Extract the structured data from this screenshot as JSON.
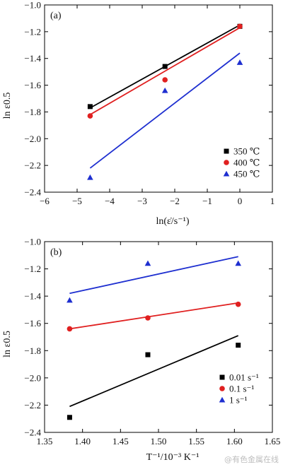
{
  "chart_data": [
    {
      "type": "scatter",
      "panel_label": "(a)",
      "xlabel": "ln(ε̇/s⁻¹)",
      "ylabel": "ln ε0.5",
      "xlim": [
        -6,
        1
      ],
      "ylim": [
        -2.4,
        -1.0
      ],
      "xticks": [
        -6,
        -5,
        -4,
        -3,
        -2,
        -1,
        0,
        1
      ],
      "xtick_labels": [
        "−6",
        "−5",
        "−4",
        "−3",
        "−2",
        "−1",
        "0",
        "1"
      ],
      "yticks": [
        -2.4,
        -2.2,
        -2.0,
        -1.8,
        -1.6,
        -1.4,
        -1.2,
        -1.0
      ],
      "ytick_labels": [
        "−2.4",
        "−2.2",
        "−2.0",
        "−1.8",
        "−1.6",
        "−1.4",
        "−1.2",
        "−1.0"
      ],
      "grid": false,
      "legend_position": "bottom-right",
      "series": [
        {
          "name": "350 ℃",
          "marker": "square",
          "color": "#000000",
          "x": [
            -4.6,
            -2.3,
            0.0
          ],
          "y": [
            -1.76,
            -1.46,
            -1.16
          ],
          "fit": {
            "x": [
              -4.6,
              0.0
            ],
            "y": [
              -1.77,
              -1.15
            ]
          }
        },
        {
          "name": "400 ℃",
          "marker": "circle",
          "color": "#e02020",
          "x": [
            -4.6,
            -2.3,
            0.0
          ],
          "y": [
            -1.83,
            -1.56,
            -1.16
          ],
          "fit": {
            "x": [
              -4.6,
              0.0
            ],
            "y": [
              -1.82,
              -1.17
            ]
          }
        },
        {
          "name": "450 ℃",
          "marker": "triangle",
          "color": "#1e2fd0",
          "x": [
            -4.6,
            -2.3,
            0.0
          ],
          "y": [
            -2.29,
            -1.64,
            -1.43
          ],
          "fit": {
            "x": [
              -4.6,
              0.0
            ],
            "y": [
              -2.22,
              -1.36
            ]
          }
        }
      ]
    },
    {
      "type": "scatter",
      "panel_label": "(b)",
      "xlabel": "T⁻¹/10⁻³ K⁻¹",
      "ylabel": "ln ε0.5",
      "xlim": [
        1.35,
        1.65
      ],
      "ylim": [
        -2.4,
        -1.0
      ],
      "xticks": [
        1.35,
        1.4,
        1.45,
        1.5,
        1.55,
        1.6,
        1.65
      ],
      "xtick_labels": [
        "1.35",
        "1.40",
        "1.45",
        "1.50",
        "1.55",
        "1.60",
        "1.65"
      ],
      "yticks": [
        -2.4,
        -2.2,
        -2.0,
        -1.8,
        -1.6,
        -1.4,
        -1.2,
        -1.0
      ],
      "ytick_labels": [
        "−2.4",
        "−2.2",
        "−2.0",
        "−1.8",
        "−1.6",
        "−1.4",
        "−1.2",
        "−1.0"
      ],
      "grid": false,
      "legend_position": "bottom-right",
      "series": [
        {
          "name": "0.01 s⁻¹",
          "marker": "square",
          "color": "#000000",
          "x": [
            1.383,
            1.486,
            1.605
          ],
          "y": [
            -2.29,
            -1.83,
            -1.76
          ],
          "fit": {
            "x": [
              1.383,
              1.605
            ],
            "y": [
              -2.21,
              -1.69
            ]
          }
        },
        {
          "name": "0.1 s⁻¹",
          "marker": "circle",
          "color": "#e02020",
          "x": [
            1.383,
            1.486,
            1.605
          ],
          "y": [
            -1.64,
            -1.56,
            -1.46
          ],
          "fit": {
            "x": [
              1.383,
              1.605
            ],
            "y": [
              -1.64,
              -1.45
            ]
          }
        },
        {
          "name": "1 s⁻¹",
          "marker": "triangle",
          "color": "#1e2fd0",
          "x": [
            1.383,
            1.486,
            1.605
          ],
          "y": [
            -1.43,
            -1.16,
            -1.16
          ],
          "fit": {
            "x": [
              1.383,
              1.605
            ],
            "y": [
              -1.38,
              -1.11
            ]
          }
        }
      ]
    }
  ],
  "watermark": "@有色金属在线"
}
